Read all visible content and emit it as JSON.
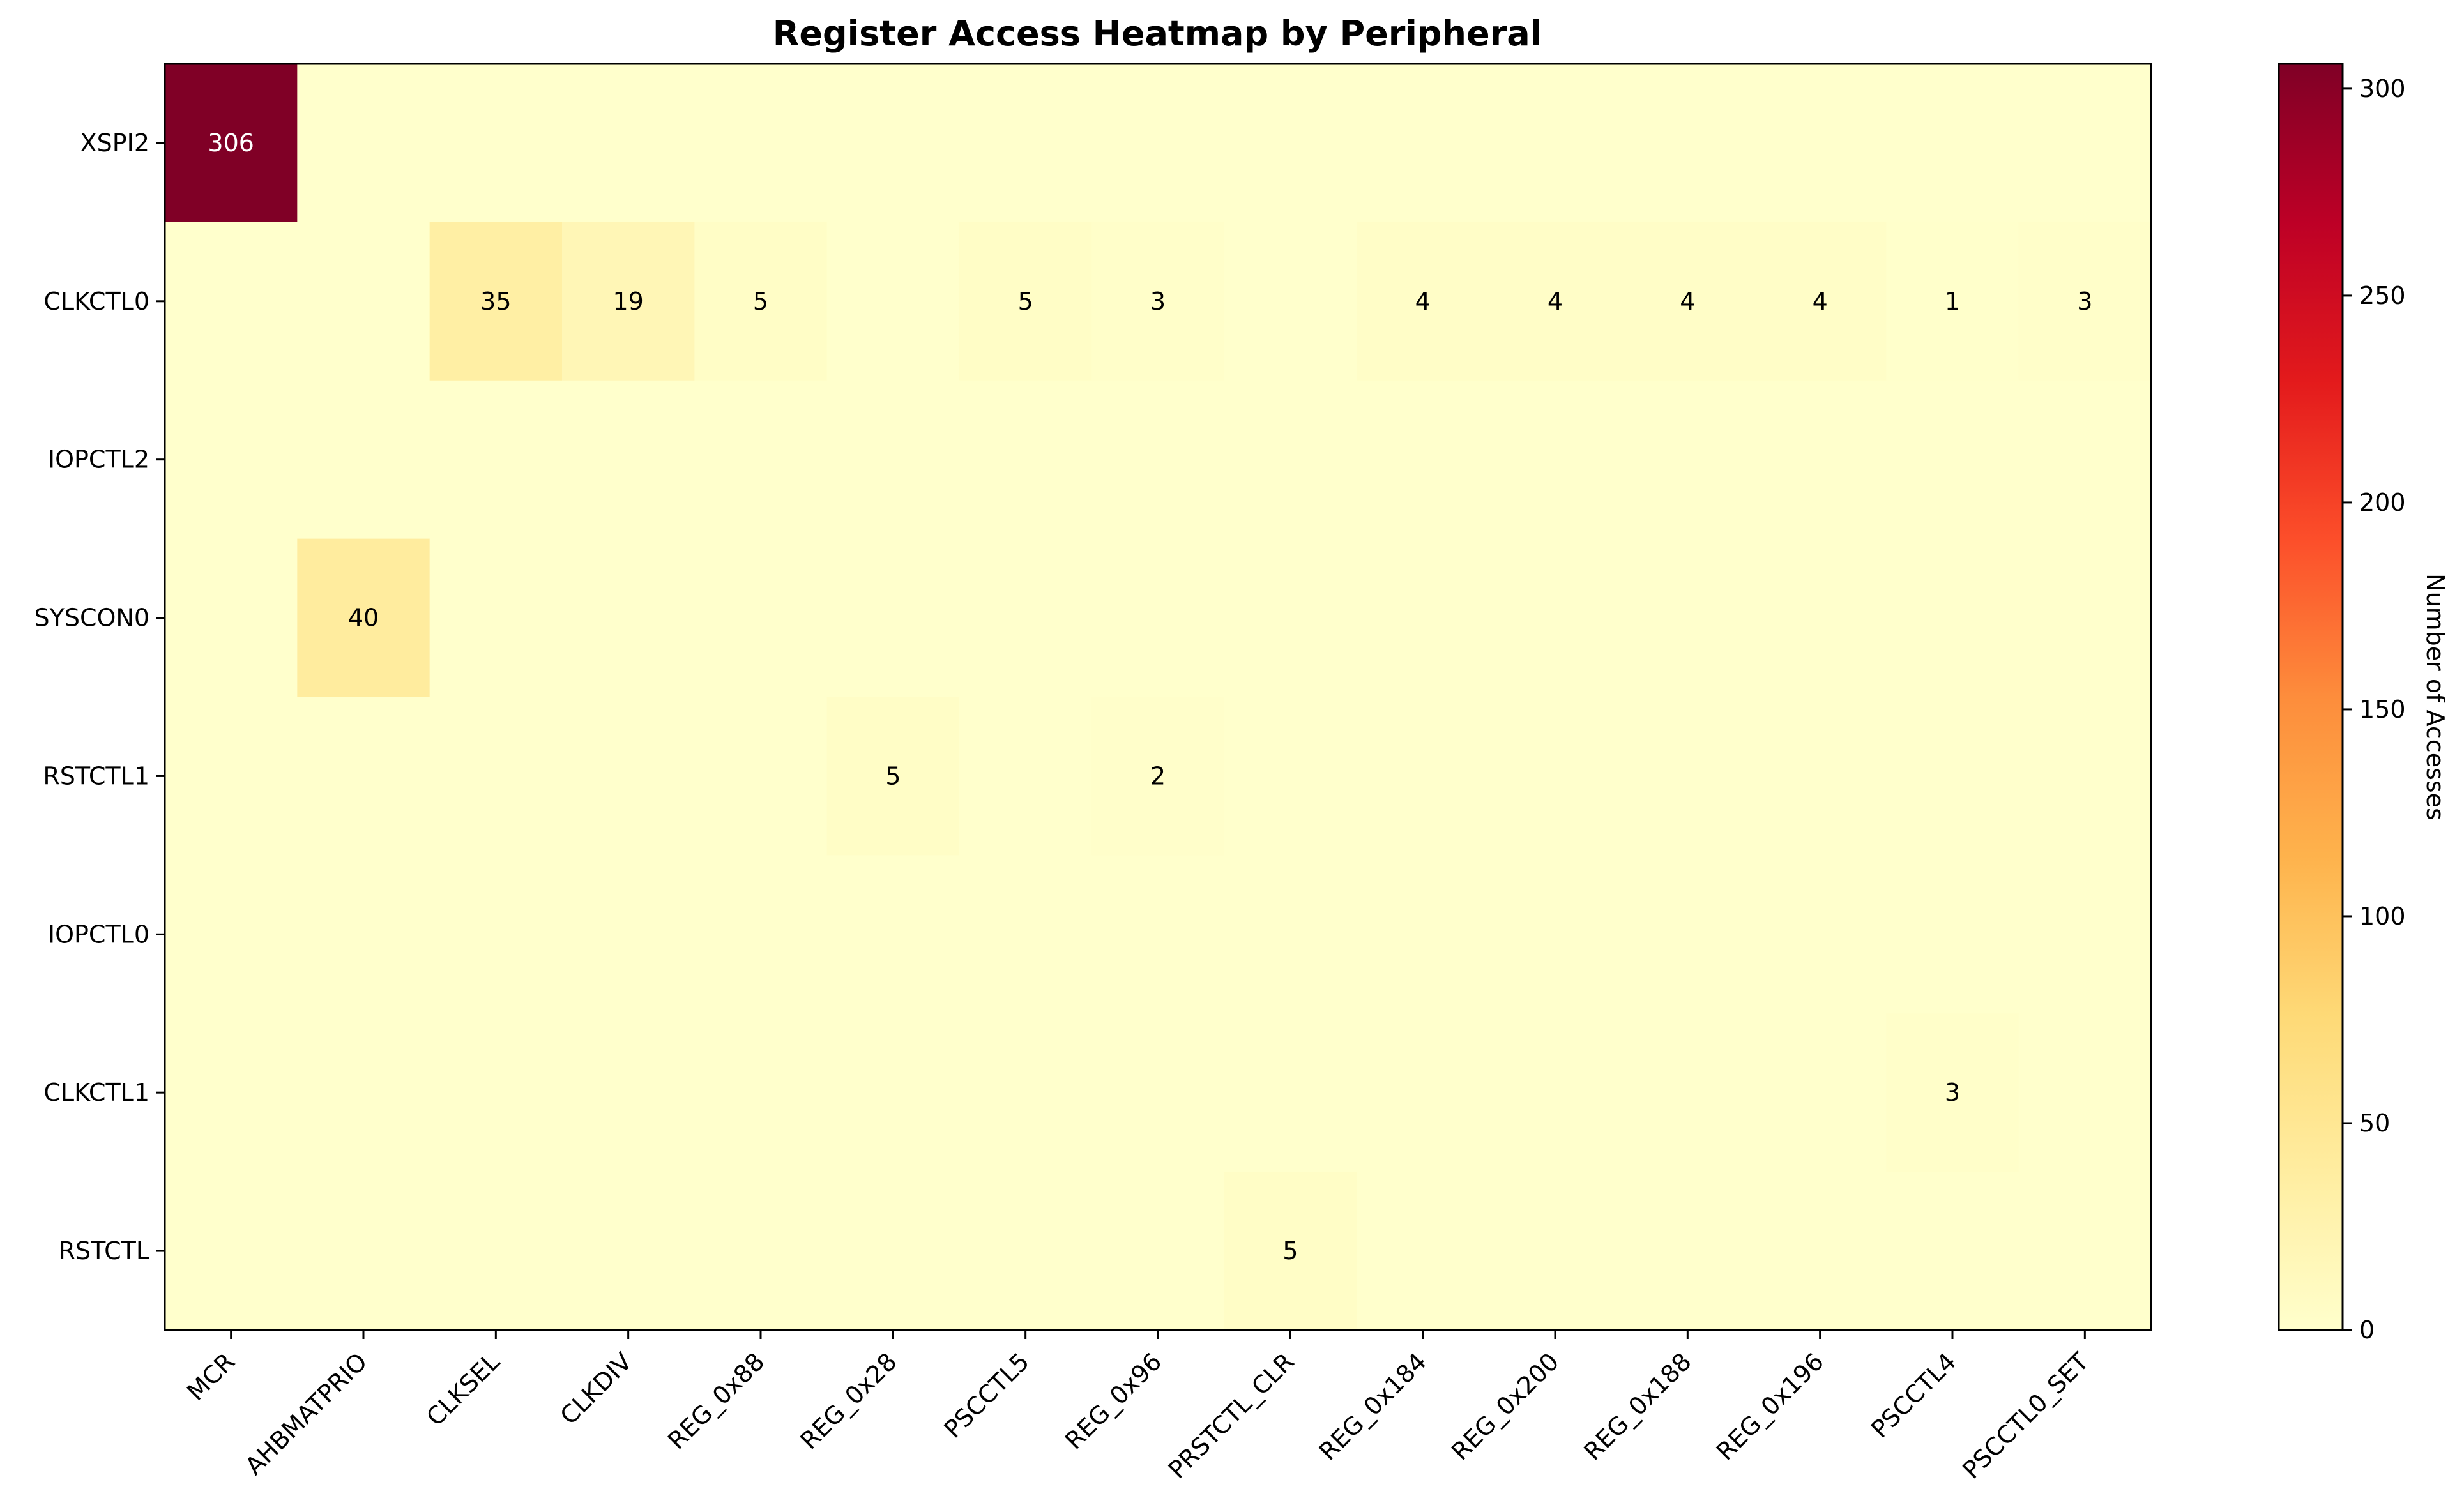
{
  "chart_data": {
    "type": "heatmap",
    "title": "Register Access Heatmap by Peripheral",
    "xlabel": "",
    "ylabel": "",
    "x_categories": [
      "MCR",
      "AHBMATPRIO",
      "CLKSEL",
      "CLKDIV",
      "REG_0x88",
      "REG_0x28",
      "PSCCTL5",
      "REG_0x96",
      "PRSTCTL_CLR",
      "REG_0x184",
      "REG_0x200",
      "REG_0x188",
      "REG_0x196",
      "PSCCTL4",
      "PSCCTL0_SET"
    ],
    "y_categories": [
      "XSPI2",
      "CLKCTL0",
      "IOPCTL2",
      "SYSCON0",
      "RSTCTL1",
      "IOPCTL0",
      "CLKCTL1",
      "RSTCTL"
    ],
    "values": [
      [
        306,
        0,
        0,
        0,
        0,
        0,
        0,
        0,
        0,
        0,
        0,
        0,
        0,
        0,
        0
      ],
      [
        0,
        0,
        35,
        19,
        5,
        0,
        5,
        3,
        0,
        4,
        4,
        4,
        4,
        1,
        3
      ],
      [
        0,
        0,
        0,
        0,
        0,
        0,
        0,
        0,
        0,
        0,
        0,
        0,
        0,
        0,
        0
      ],
      [
        0,
        40,
        0,
        0,
        0,
        0,
        0,
        0,
        0,
        0,
        0,
        0,
        0,
        0,
        0
      ],
      [
        0,
        0,
        0,
        0,
        0,
        5,
        0,
        2,
        0,
        0,
        0,
        0,
        0,
        0,
        0
      ],
      [
        0,
        0,
        0,
        0,
        0,
        0,
        0,
        0,
        0,
        0,
        0,
        0,
        0,
        0,
        0
      ],
      [
        0,
        0,
        0,
        0,
        0,
        0,
        0,
        0,
        0,
        0,
        0,
        0,
        0,
        3,
        0
      ],
      [
        0,
        0,
        0,
        0,
        0,
        0,
        0,
        0,
        5,
        0,
        0,
        0,
        0,
        0,
        0
      ]
    ],
    "show_zero_labels": false,
    "colormap": "YlOrRd",
    "vmin": 0,
    "vmax": 306,
    "colorbar": {
      "label": "Number of Accesses",
      "ticks": [
        0,
        50,
        100,
        150,
        200,
        250,
        300
      ]
    }
  }
}
